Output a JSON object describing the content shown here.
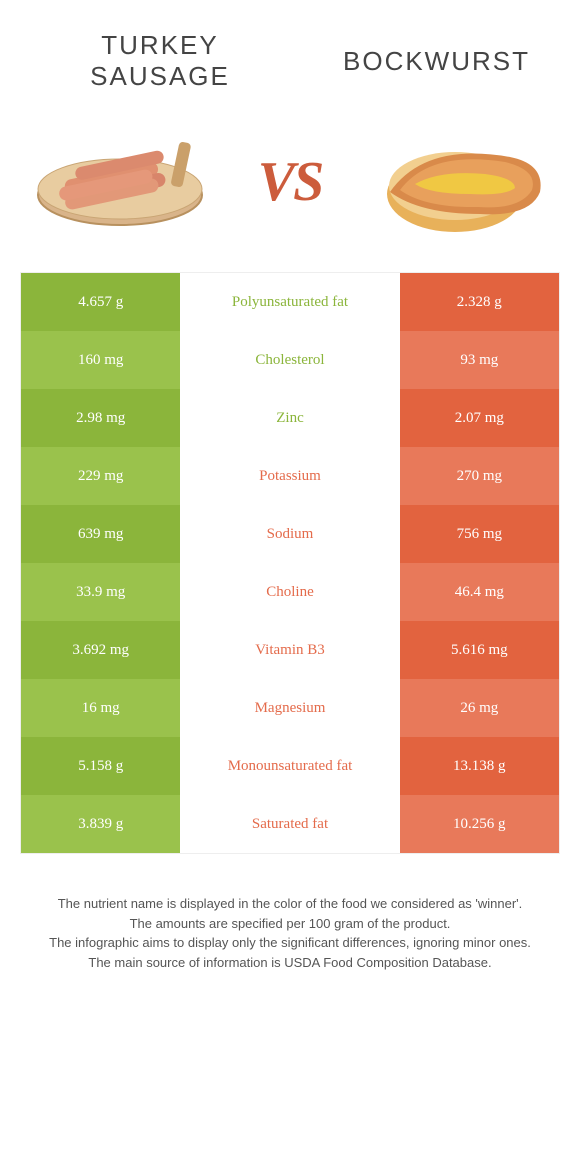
{
  "colors": {
    "green_dark": "#8bb53b",
    "green_light": "#9ac24c",
    "orange_dark": "#e2633f",
    "orange_light": "#e8795a",
    "vs": "#cc5c3c",
    "title": "#444444",
    "footer": "#555555"
  },
  "header": {
    "left_title": "TURKEY SAUSAGE",
    "right_title": "BOCKWURST",
    "vs": "VS"
  },
  "rows": [
    {
      "left": "4.657 g",
      "label": "Polyunsaturated fat",
      "right": "2.328 g",
      "winner": "left"
    },
    {
      "left": "160 mg",
      "label": "Cholesterol",
      "right": "93 mg",
      "winner": "left"
    },
    {
      "left": "2.98 mg",
      "label": "Zinc",
      "right": "2.07 mg",
      "winner": "left"
    },
    {
      "left": "229 mg",
      "label": "Potassium",
      "right": "270 mg",
      "winner": "right"
    },
    {
      "left": "639 mg",
      "label": "Sodium",
      "right": "756 mg",
      "winner": "right"
    },
    {
      "left": "33.9 mg",
      "label": "Choline",
      "right": "46.4 mg",
      "winner": "right"
    },
    {
      "left": "3.692 mg",
      "label": "Vitamin B3",
      "right": "5.616 mg",
      "winner": "right"
    },
    {
      "left": "16 mg",
      "label": "Magnesium",
      "right": "26 mg",
      "winner": "right"
    },
    {
      "left": "5.158 g",
      "label": "Monounsaturated fat",
      "right": "13.138 g",
      "winner": "right"
    },
    {
      "left": "3.839 g",
      "label": "Saturated fat",
      "right": "10.256 g",
      "winner": "right"
    }
  ],
  "footer": {
    "line1": "The nutrient name is displayed in the color of the food we considered as 'winner'.",
    "line2": "The amounts are specified per 100 gram of the product.",
    "line3": "The infographic aims to display only the significant differences, ignoring minor ones.",
    "line4": "The main source of information is USDA Food Composition Database."
  }
}
